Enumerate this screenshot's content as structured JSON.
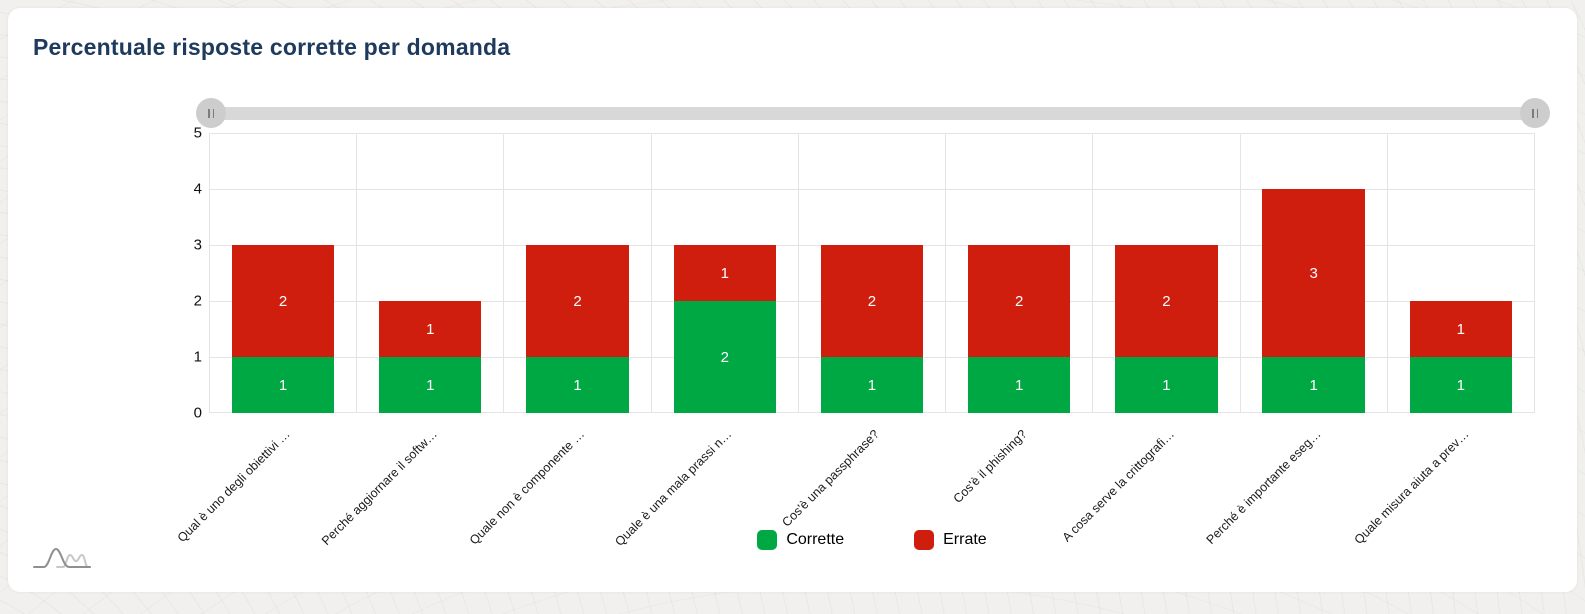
{
  "chart_data": {
    "type": "bar",
    "stacked": true,
    "title": "Percentuale risposte corrette per domanda",
    "categories": [
      "Qual è uno degli obiettivi …",
      "Perché aggiornare il softw…",
      "Quale non è componente …",
      "Quale è una mala prassi n…",
      "Cos'è una passphrase?",
      "Cos'è il phishing?",
      "A cosa serve la crittografi…",
      "Perché è importante eseg…",
      "Quale misura aiuta a prev…"
    ],
    "series": [
      {
        "name": "Corrette",
        "color": "#00A843",
        "values": [
          1,
          1,
          1,
          2,
          1,
          1,
          1,
          1,
          1
        ]
      },
      {
        "name": "Errate",
        "color": "#D01E0E",
        "values": [
          2,
          1,
          2,
          1,
          2,
          2,
          2,
          3,
          1
        ]
      }
    ],
    "ylim": [
      0,
      5
    ],
    "y_ticks": [
      0,
      1,
      2,
      3,
      4,
      5
    ],
    "grid": true,
    "value_labels": "inside",
    "legend_position": "bottom"
  },
  "legend": {
    "items": [
      {
        "label": "Corrette",
        "color": "#00A843"
      },
      {
        "label": "Errate",
        "color": "#D01E0E"
      }
    ]
  },
  "icons": {
    "scrollbar_grip": "drag-grip-icon",
    "logo": "amcharts-curves-logo"
  },
  "colors": {
    "title": "#1E3A5C",
    "grid": "#E4E4E4",
    "bar_label": "#FFFFFF",
    "axis_text": "#1A1A1A",
    "scrollbar_track": "#D8D8D8",
    "scrollbar_grip": "#CDCDCD",
    "page_background": "#F1F0EE",
    "card_background": "#FFFFFF"
  }
}
